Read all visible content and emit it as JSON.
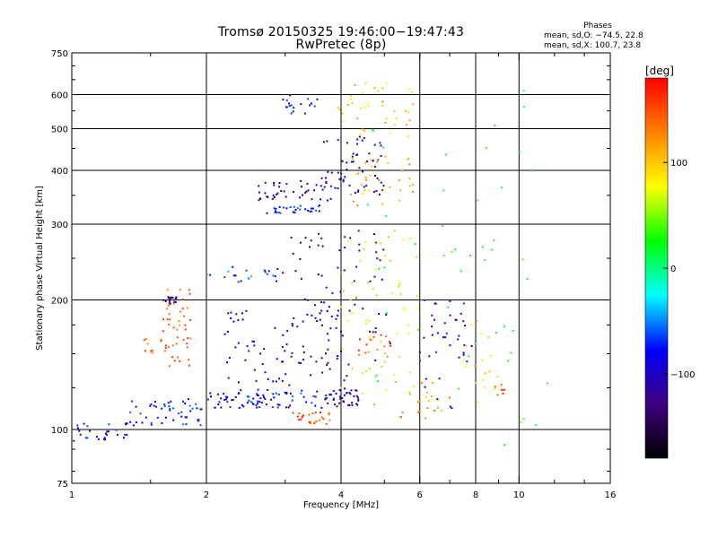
{
  "chart_data": {
    "type": "scatter",
    "title": "Tromsø 20150325 19:46:00−19:47:43",
    "subtitle": "RwPretec (8p)",
    "xlabel": "Frequency [MHz]",
    "ylabel": "Stationary phase Virtual Height [km]",
    "x_scale": "log",
    "y_scale": "log",
    "xlim": [
      1,
      16
    ],
    "ylim": [
      75,
      750
    ],
    "x_ticks": [
      "1",
      "2",
      "4",
      "6",
      "8",
      "10",
      "16"
    ],
    "y_ticks": [
      "75",
      "100",
      "200",
      "300",
      "400",
      "500",
      "600",
      "750"
    ],
    "x_gridlines": [
      2,
      4,
      6,
      8,
      10
    ],
    "y_gridlines": [
      100,
      200,
      300,
      400,
      500,
      600
    ],
    "grid": true,
    "colorbar": {
      "label": "[deg]",
      "range": [
        -180,
        180
      ],
      "ticks": [
        "100",
        "0",
        "−100"
      ],
      "tick_values": [
        100,
        0,
        -100
      ],
      "colors": [
        "#ff0000",
        "#ff8000",
        "#ffff00",
        "#00ff00",
        "#00ffff",
        "#0000ff",
        "#400080",
        "#000000"
      ]
    },
    "phases_legend": {
      "heading": "Phases",
      "line_o": "mean, sd,O: −74.5, 22.8",
      "line_x": "mean, sd,X: 100.7, 23.8"
    },
    "clusters": [
      {
        "x": [
          1.0,
          1.35
        ],
        "y": [
          94,
          104
        ],
        "phase": -85,
        "n": 28
      },
      {
        "x": [
          1.35,
          2.0
        ],
        "y": [
          102,
          118
        ],
        "phase": -75,
        "n": 50
      },
      {
        "x": [
          2.0,
          3.8
        ],
        "y": [
          112,
          122
        ],
        "phase": -78,
        "n": 80
      },
      {
        "x": [
          3.8,
          4.4
        ],
        "y": [
          112,
          124
        ],
        "phase": -115,
        "n": 30
      },
      {
        "x": [
          1.6,
          1.85
        ],
        "y": [
          140,
          215
        ],
        "phase": 140,
        "n": 45
      },
      {
        "x": [
          1.45,
          1.65
        ],
        "y": [
          150,
          165
        ],
        "phase": 140,
        "n": 10
      },
      {
        "x": [
          1.6,
          1.72
        ],
        "y": [
          196,
          204
        ],
        "phase": -120,
        "n": 16
      },
      {
        "x": [
          2.0,
          3.0
        ],
        "y": [
          220,
          240
        ],
        "phase": -65,
        "n": 22
      },
      {
        "x": [
          2.2,
          4.2
        ],
        "y": [
          120,
          190
        ],
        "phase": -100,
        "n": 90
      },
      {
        "x": [
          3.0,
          5.2
        ],
        "y": [
          140,
          290
        ],
        "phase": -125,
        "n": 70
      },
      {
        "x": [
          4.0,
          6.0
        ],
        "y": [
          120,
          290
        ],
        "phase": 80,
        "n": 60
      },
      {
        "x": [
          3.1,
          3.8
        ],
        "y": [
          103,
          110
        ],
        "phase": 145,
        "n": 26
      },
      {
        "x": [
          4.3,
          5.2
        ],
        "y": [
          145,
          170
        ],
        "phase": 145,
        "n": 16
      },
      {
        "x": [
          5.4,
          7.0
        ],
        "y": [
          105,
          130
        ],
        "phase": 120,
        "n": 20
      },
      {
        "x": [
          6.0,
          8.0
        ],
        "y": [
          110,
          200
        ],
        "phase": -90,
        "n": 40
      },
      {
        "x": [
          7.5,
          9.0
        ],
        "y": [
          115,
          180
        ],
        "phase": 90,
        "n": 20
      },
      {
        "x": [
          8.8,
          9.3
        ],
        "y": [
          120,
          128
        ],
        "phase": 150,
        "n": 8
      },
      {
        "x": [
          2.7,
          3.6
        ],
        "y": [
          318,
          332
        ],
        "phase": -75,
        "n": 30
      },
      {
        "x": [
          2.6,
          3.8
        ],
        "y": [
          340,
          380
        ],
        "phase": -125,
        "n": 40
      },
      {
        "x": [
          3.6,
          5.0
        ],
        "y": [
          350,
          480
        ],
        "phase": -120,
        "n": 60
      },
      {
        "x": [
          4.2,
          5.8
        ],
        "y": [
          330,
          440
        ],
        "phase": 110,
        "n": 35
      },
      {
        "x": [
          3.8,
          5.8
        ],
        "y": [
          480,
          640
        ],
        "phase": 100,
        "n": 40
      },
      {
        "x": [
          2.9,
          3.6
        ],
        "y": [
          540,
          600
        ],
        "phase": -80,
        "n": 18
      },
      {
        "x": [
          4.5,
          12.0
        ],
        "y": [
          80,
          640
        ],
        "phase": 20,
        "n": 50
      }
    ]
  }
}
